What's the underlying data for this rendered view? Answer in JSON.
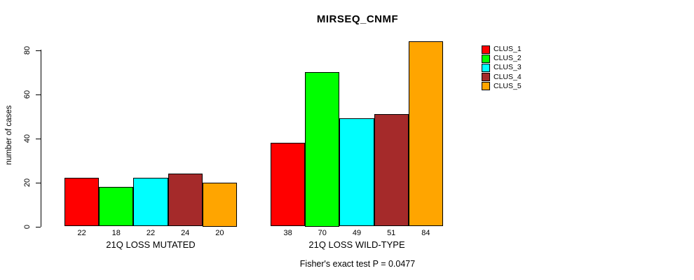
{
  "figure": {
    "title": "MIRSEQ_CNMF",
    "ylabel": "number of cases",
    "footnote": "Fisher's exact test P = 0.0477"
  },
  "chart_data": {
    "type": "bar",
    "title": "MIRSEQ_CNMF",
    "xlabel": "",
    "ylabel": "number of cases",
    "categories": [
      "21Q LOSS MUTATED",
      "21Q LOSS WILD-TYPE"
    ],
    "series": [
      {
        "name": "CLUS_1",
        "color": "#FF0000",
        "values": [
          22,
          38
        ]
      },
      {
        "name": "CLUS_2",
        "color": "#00FF00",
        "values": [
          18,
          70
        ]
      },
      {
        "name": "CLUS_3",
        "color": "#00FFFF",
        "values": [
          22,
          49
        ]
      },
      {
        "name": "CLUS_4",
        "color": "#A52A2A",
        "values": [
          24,
          51
        ]
      },
      {
        "name": "CLUS_5",
        "color": "#FFA500",
        "values": [
          20,
          84
        ]
      }
    ],
    "bar_value_labels": [
      [
        22,
        18,
        22,
        24,
        20
      ],
      [
        38,
        70,
        49,
        51,
        84
      ]
    ],
    "yticks": [
      0,
      20,
      40,
      60,
      80
    ],
    "ylim": [
      0,
      88
    ],
    "grid": false,
    "legend_position": "right",
    "bar_border_color": "#000000",
    "annotation": "Fisher's exact test P = 0.0477"
  }
}
